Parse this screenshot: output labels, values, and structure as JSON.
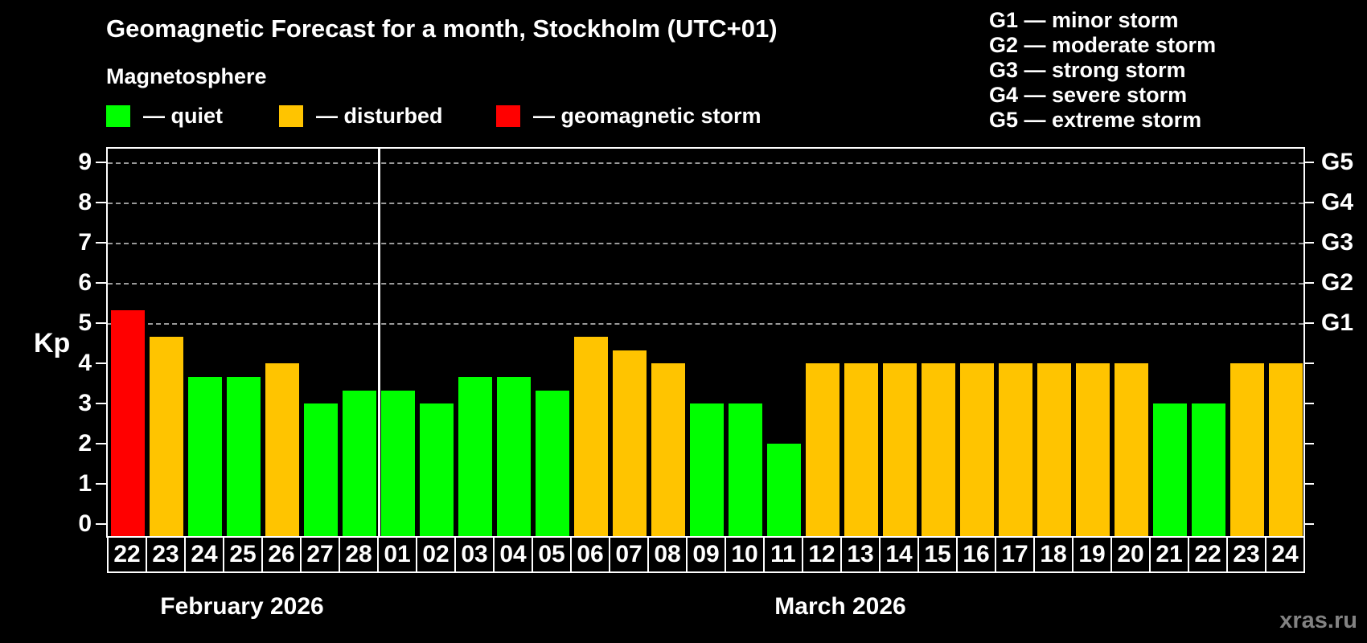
{
  "title": "Geomagnetic Forecast for a month, Stockholm (UTC+01)",
  "magnetosphere_legend": {
    "title": "Magnetosphere",
    "items": [
      {
        "name": "quiet",
        "label": "— quiet",
        "color": "#00ff00"
      },
      {
        "name": "disturbed",
        "label": "— disturbed",
        "color": "#ffc400"
      },
      {
        "name": "storm",
        "label": "— geomagnetic storm",
        "color": "#ff0000"
      }
    ]
  },
  "g_scale_legend": {
    "lines": [
      "G1 — minor storm",
      "G2 — moderate storm",
      "G3 — strong storm",
      "G4 — severe storm",
      "G5 — extreme storm"
    ]
  },
  "y_axis": {
    "label": "Kp",
    "ticks": [
      0,
      1,
      2,
      3,
      4,
      5,
      6,
      7,
      8,
      9
    ]
  },
  "right_axis": {
    "labels": [
      {
        "kp": 5,
        "text": "G1"
      },
      {
        "kp": 6,
        "text": "G2"
      },
      {
        "kp": 7,
        "text": "G3"
      },
      {
        "kp": 8,
        "text": "G4"
      },
      {
        "kp": 9,
        "text": "G5"
      }
    ]
  },
  "months": [
    {
      "label": "February 2026",
      "days": 7
    },
    {
      "label": "March 2026",
      "days": 24
    }
  ],
  "watermark": "xras.ru",
  "chart_data": {
    "type": "bar",
    "title": "Geomagnetic Forecast for a month, Stockholm (UTC+01)",
    "xlabel": "",
    "ylabel": "Kp",
    "ylim": [
      0,
      9.4
    ],
    "gridlines": [
      5,
      6,
      7,
      8,
      9
    ],
    "grid_style": "dashed, G-storm levels only",
    "legend_position": "top-left",
    "bars": [
      {
        "month": "February 2026",
        "day": "22",
        "value": 5.33,
        "status": "storm"
      },
      {
        "month": "February 2026",
        "day": "23",
        "value": 4.67,
        "status": "disturbed"
      },
      {
        "month": "February 2026",
        "day": "24",
        "value": 3.67,
        "status": "quiet"
      },
      {
        "month": "February 2026",
        "day": "25",
        "value": 3.67,
        "status": "quiet"
      },
      {
        "month": "February 2026",
        "day": "26",
        "value": 4.0,
        "status": "disturbed"
      },
      {
        "month": "February 2026",
        "day": "27",
        "value": 3.0,
        "status": "quiet"
      },
      {
        "month": "February 2026",
        "day": "28",
        "value": 3.33,
        "status": "quiet"
      },
      {
        "month": "March 2026",
        "day": "01",
        "value": 3.33,
        "status": "quiet"
      },
      {
        "month": "March 2026",
        "day": "02",
        "value": 3.0,
        "status": "quiet"
      },
      {
        "month": "March 2026",
        "day": "03",
        "value": 3.67,
        "status": "quiet"
      },
      {
        "month": "March 2026",
        "day": "04",
        "value": 3.67,
        "status": "quiet"
      },
      {
        "month": "March 2026",
        "day": "05",
        "value": 3.33,
        "status": "quiet"
      },
      {
        "month": "March 2026",
        "day": "06",
        "value": 4.67,
        "status": "disturbed"
      },
      {
        "month": "March 2026",
        "day": "07",
        "value": 4.33,
        "status": "disturbed"
      },
      {
        "month": "March 2026",
        "day": "08",
        "value": 4.0,
        "status": "disturbed"
      },
      {
        "month": "March 2026",
        "day": "09",
        "value": 3.0,
        "status": "quiet"
      },
      {
        "month": "March 2026",
        "day": "10",
        "value": 3.0,
        "status": "quiet"
      },
      {
        "month": "March 2026",
        "day": "11",
        "value": 2.0,
        "status": "quiet"
      },
      {
        "month": "March 2026",
        "day": "12",
        "value": 4.0,
        "status": "disturbed"
      },
      {
        "month": "March 2026",
        "day": "13",
        "value": 4.0,
        "status": "disturbed"
      },
      {
        "month": "March 2026",
        "day": "14",
        "value": 4.0,
        "status": "disturbed"
      },
      {
        "month": "March 2026",
        "day": "15",
        "value": 4.0,
        "status": "disturbed"
      },
      {
        "month": "March 2026",
        "day": "16",
        "value": 4.0,
        "status": "disturbed"
      },
      {
        "month": "March 2026",
        "day": "17",
        "value": 4.0,
        "status": "disturbed"
      },
      {
        "month": "March 2026",
        "day": "18",
        "value": 4.0,
        "status": "disturbed"
      },
      {
        "month": "March 2026",
        "day": "19",
        "value": 4.0,
        "status": "disturbed"
      },
      {
        "month": "March 2026",
        "day": "20",
        "value": 4.0,
        "status": "disturbed"
      },
      {
        "month": "March 2026",
        "day": "21",
        "value": 3.0,
        "status": "quiet"
      },
      {
        "month": "March 2026",
        "day": "22",
        "value": 3.0,
        "status": "quiet"
      },
      {
        "month": "March 2026",
        "day": "23",
        "value": 4.0,
        "status": "disturbed"
      },
      {
        "month": "March 2026",
        "day": "24",
        "value": 4.0,
        "status": "disturbed"
      }
    ]
  }
}
